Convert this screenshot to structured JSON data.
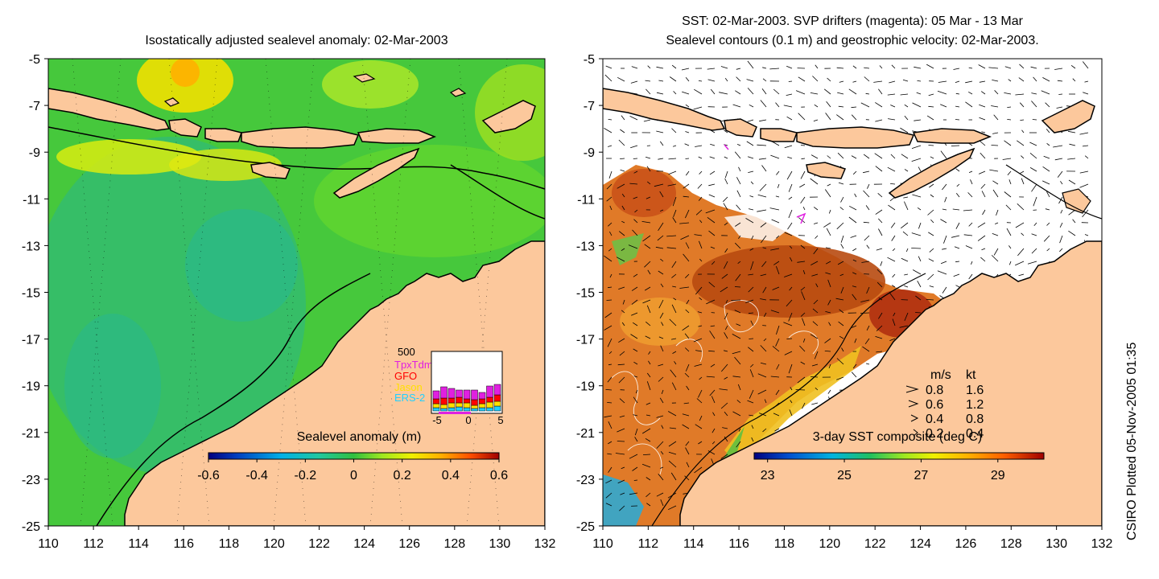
{
  "left_panel": {
    "title": "Isostatically adjusted sealevel anomaly: 02-Mar-2003",
    "x_ticks": [
      "110",
      "112",
      "114",
      "116",
      "118",
      "120",
      "122",
      "124",
      "126",
      "128",
      "130",
      "132"
    ],
    "y_ticks": [
      "-5",
      "-7",
      "-9",
      "-11",
      "-13",
      "-15",
      "-17",
      "-19",
      "-21",
      "-23",
      "-25"
    ],
    "colorbar": {
      "label": "Sealevel anomaly (m)",
      "ticks": [
        "-0.6",
        "-0.4",
        "-0.2",
        "0",
        "0.2",
        "0.4",
        "0.6"
      ],
      "range": [
        -0.6,
        0.6
      ],
      "colormap": [
        "#00007f",
        "#0050d0",
        "#00b4e0",
        "#20c8a0",
        "#30c060",
        "#70e020",
        "#d8f000",
        "#ffd000",
        "#ff9000",
        "#ff4000",
        "#a00000"
      ]
    },
    "inset": {
      "top_label": "500",
      "legend": [
        {
          "label": "TpxTdm",
          "color": "#e020e0"
        },
        {
          "label": "GFO",
          "color": "#ff0000"
        },
        {
          "label": "Jason",
          "color": "#ffe000"
        },
        {
          "label": "ERS-2",
          "color": "#20d0ff"
        }
      ],
      "x_ticks": [
        "-5",
        "0",
        "5"
      ]
    }
  },
  "right_panel": {
    "title_line1": "SST: 02-Mar-2003. SVP drifters (magenta): 05 Mar - 13 Mar",
    "title_line2": "Sealevel contours (0.1 m) and geostrophic velocity: 02-Mar-2003.",
    "x_ticks": [
      "110",
      "112",
      "114",
      "116",
      "118",
      "120",
      "122",
      "124",
      "126",
      "128",
      "130",
      "132"
    ],
    "y_ticks": [
      "-5",
      "-7",
      "-9",
      "-11",
      "-13",
      "-15",
      "-17",
      "-19",
      "-21",
      "-23",
      "-25"
    ],
    "colorbar": {
      "label": "3-day SST composite (deg C)",
      "ticks": [
        "23",
        "25",
        "27",
        "29"
      ],
      "range": [
        23,
        30
      ],
      "colormap": [
        "#00007f",
        "#0050d0",
        "#00b4e0",
        "#20c060",
        "#70e020",
        "#e8f000",
        "#ffb000",
        "#ff6000",
        "#d03000",
        "#a00000"
      ]
    },
    "velocity_key": {
      "header_ms": "m/s",
      "header_kt": "kt",
      "rows": [
        {
          "ms": "0.8",
          "kt": "1.6"
        },
        {
          "ms": "0.6",
          "kt": "1.2"
        },
        {
          "ms": "0.4",
          "kt": "0.8"
        },
        {
          "ms": "0.2",
          "kt": "0.4"
        }
      ]
    }
  },
  "credit": "CSIRO Plotted 05-Nov-2005 01:35",
  "colors": {
    "land": "#fcc89c",
    "ocean_left": "#40c840",
    "coast": "#000000"
  }
}
